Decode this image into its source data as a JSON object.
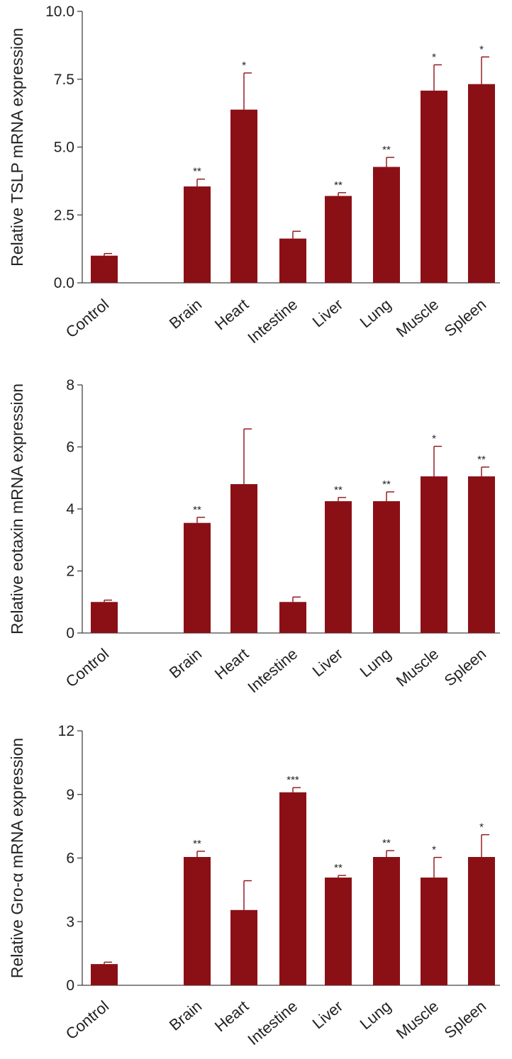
{
  "colors": {
    "bar": "#8b1016",
    "axis": "#444444",
    "text": "#222222"
  },
  "chart_data": [
    {
      "type": "bar",
      "title": "",
      "xlabel": "",
      "ylabel": "Relative TSLP mRNA expression",
      "ylim": [
        0,
        10
      ],
      "yticks": [
        0,
        2.5,
        5,
        7.5,
        10
      ],
      "ytick_labels": [
        "0.0",
        "2.5",
        "5.0",
        "7.5",
        "10.0"
      ],
      "categories": [
        "Control",
        "Brain",
        "Heart",
        "Intestine",
        "Liver",
        "Lung",
        "Muscle",
        "Spleen"
      ],
      "values": [
        1.0,
        3.55,
        6.38,
        1.63,
        3.2,
        4.27,
        7.08,
        7.32
      ],
      "errors": [
        0.08,
        0.27,
        1.35,
        0.27,
        0.12,
        0.35,
        0.95,
        1.0
      ],
      "significance": [
        "",
        "**",
        "*",
        "",
        "**",
        "**",
        "*",
        "*"
      ]
    },
    {
      "type": "bar",
      "title": "",
      "xlabel": "",
      "ylabel": "Relative eotaxin mRNA expression",
      "ylim": [
        0,
        8
      ],
      "yticks": [
        0,
        2,
        4,
        6,
        8
      ],
      "ytick_labels": [
        "0",
        "2",
        "4",
        "6",
        "8"
      ],
      "categories": [
        "Control",
        "Brain",
        "Heart",
        "Intestine",
        "Liver",
        "Lung",
        "Muscle",
        "Spleen"
      ],
      "values": [
        1.0,
        3.55,
        4.8,
        1.0,
        4.25,
        4.25,
        5.05,
        5.05
      ],
      "errors": [
        0.06,
        0.18,
        1.78,
        0.16,
        0.12,
        0.3,
        0.97,
        0.3
      ],
      "significance": [
        "",
        "**",
        "",
        "",
        "**",
        "**",
        "*",
        "**"
      ]
    },
    {
      "type": "bar",
      "title": "",
      "xlabel": "",
      "ylabel": "Relative Gro-α mRNA expression",
      "ylim": [
        0,
        12
      ],
      "yticks": [
        0,
        3,
        6,
        9,
        12
      ],
      "ytick_labels": [
        "0",
        "3",
        "6",
        "9",
        "12"
      ],
      "categories": [
        "Control",
        "Brain",
        "Heart",
        "Intestine",
        "Liver",
        "Lung",
        "Muscle",
        "Spleen"
      ],
      "values": [
        1.0,
        6.05,
        3.55,
        9.1,
        5.08,
        6.05,
        5.08,
        6.05
      ],
      "errors": [
        0.09,
        0.27,
        1.38,
        0.22,
        0.1,
        0.3,
        0.95,
        1.05
      ],
      "significance": [
        "",
        "**",
        "",
        "***",
        "**",
        "**",
        "*",
        "*"
      ]
    }
  ]
}
